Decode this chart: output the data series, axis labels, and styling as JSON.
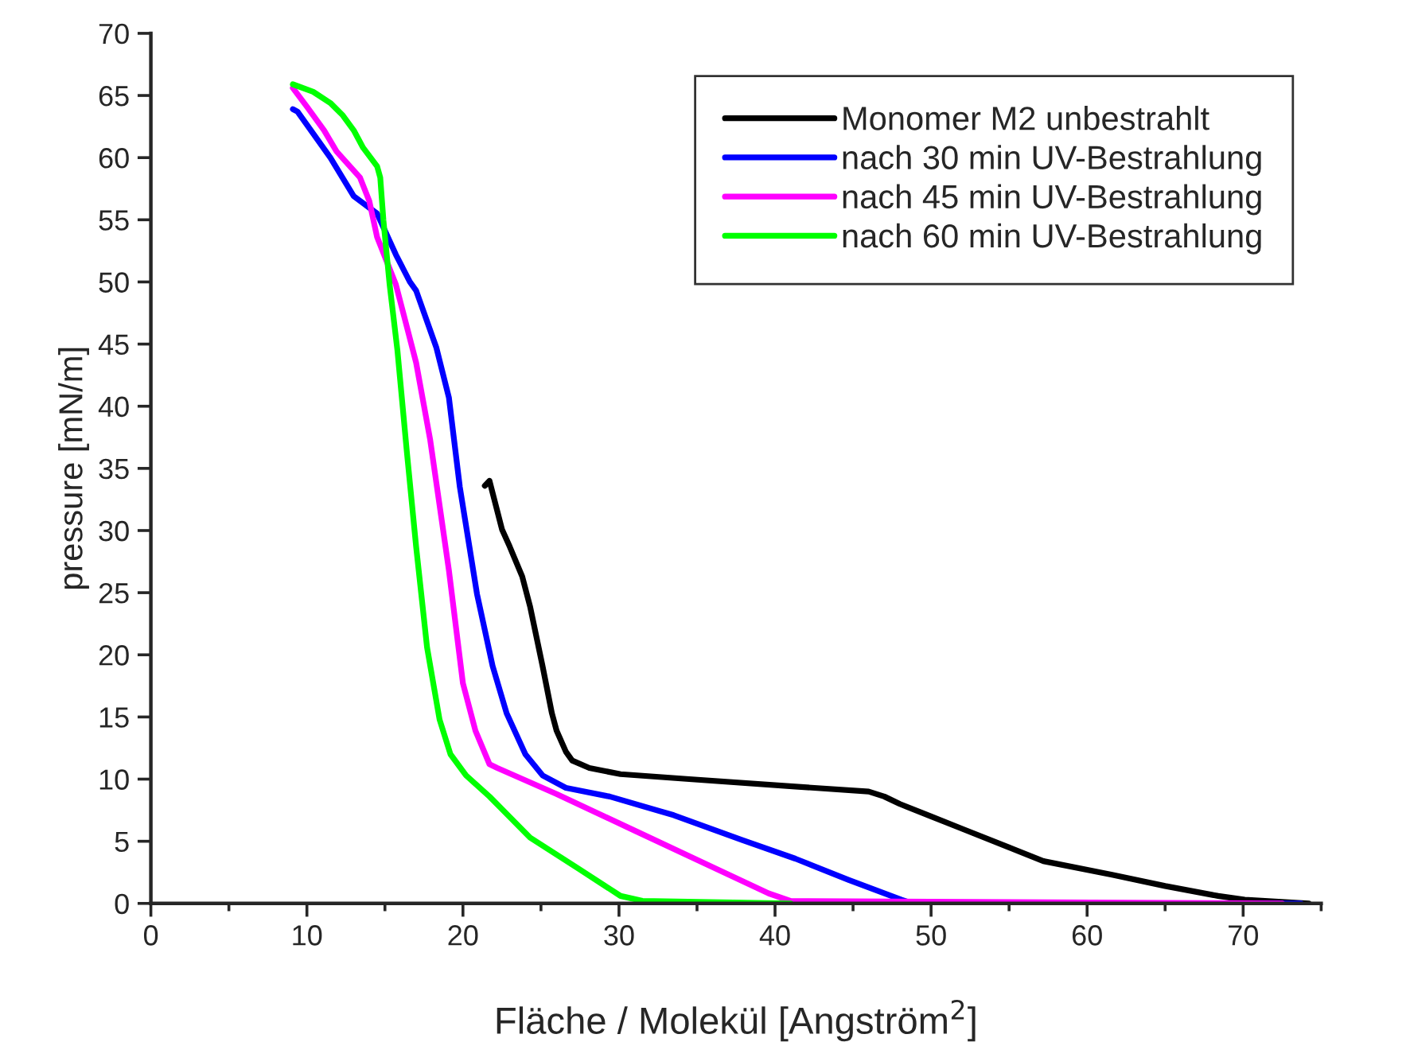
{
  "chart_data": {
    "type": "line",
    "xlabel": "Fläche / Molekül [Angström$^{2}$]",
    "ylabel": "pressure [mN/m]",
    "xlim": [
      0,
      75
    ],
    "ylim": [
      0,
      70
    ],
    "xticks": [
      0,
      10,
      20,
      30,
      40,
      50,
      60,
      70
    ],
    "yticks": [
      0,
      5,
      10,
      15,
      20,
      25,
      30,
      35,
      40,
      45,
      50,
      55,
      60,
      65,
      70
    ],
    "grid": false,
    "legend": "top right",
    "marker": "none",
    "line_style": "solid",
    "series": [
      {
        "name": "Monomer M2 unbestrahlt",
        "color": "#000000",
        "x": [
          21.4,
          21.7,
          22.5,
          23.0,
          23.8,
          24.3,
          25.1,
          25.7,
          26.0,
          26.6,
          27.0,
          28.1,
          30.1,
          34.5,
          41.3,
          46,
          47,
          48,
          50,
          52,
          55,
          57.2,
          61.6,
          65.0,
          68.4,
          70.1,
          74.2
        ],
        "values": [
          33.6,
          34.0,
          30.1,
          28.7,
          26.3,
          23.9,
          19.1,
          15.3,
          13.9,
          12.2,
          11.5,
          10.9,
          10.4,
          10.0,
          9.4,
          9.0,
          8.6,
          8.0,
          7.0,
          6.0,
          4.5,
          3.4,
          2.3,
          1.4,
          0.6,
          0.3,
          0
        ]
      },
      {
        "name": "nach 30 min UV-Bestrahlung",
        "color": "#0000ff",
        "x": [
          9.1,
          9.4,
          11.5,
          13.0,
          14.5,
          15.7,
          16.6,
          17.0,
          18.3,
          19.1,
          19.8,
          20.9,
          21.9,
          22.8,
          24.0,
          25.1,
          26.6,
          29.4,
          33.5,
          37.9,
          41.3,
          44.7,
          48.1,
          48.8,
          73.7
        ],
        "values": [
          63.9,
          63.7,
          60.0,
          56.9,
          55.5,
          52.2,
          50.0,
          49.3,
          44.7,
          40.7,
          33.5,
          24.9,
          19.1,
          15.3,
          12.0,
          10.3,
          9.3,
          8.6,
          7.1,
          5.1,
          3.6,
          1.9,
          0.3,
          0,
          0
        ]
      },
      {
        "name": "nach 45 min UV-Bestrahlung",
        "color": "#ff00ff",
        "x": [
          9.1,
          10.0,
          11.1,
          11.9,
          13.4,
          14.0,
          14.5,
          15.7,
          17.0,
          17.9,
          19.1,
          20.0,
          20.8,
          21.7,
          22.2,
          26.0,
          31.1,
          36.2,
          39.6,
          41.0,
          72.5
        ],
        "values": [
          65.6,
          64.1,
          62.2,
          60.5,
          58.4,
          56.5,
          53.6,
          49.8,
          43.5,
          37.3,
          26.8,
          17.7,
          13.9,
          11.2,
          10.9,
          8.8,
          5.8,
          2.8,
          0.8,
          0.2,
          0
        ]
      },
      {
        "name": "nach 60 min UV-Bestrahlung",
        "color": "#00ff00",
        "x": [
          9.1,
          10.4,
          11.5,
          12.3,
          13.0,
          13.6,
          14.5,
          14.7,
          14.9,
          15.3,
          15.8,
          16.4,
          17.0,
          17.7,
          18.5,
          19.2,
          20.2,
          21.7,
          24.3,
          27.4,
          30.1,
          31.5,
          41.0
        ],
        "values": [
          65.9,
          65.3,
          64.4,
          63.4,
          62.2,
          60.8,
          59.3,
          58.4,
          55.0,
          49.8,
          44.5,
          36.4,
          28.7,
          20.6,
          14.8,
          12.0,
          10.3,
          8.6,
          5.3,
          2.8,
          0.6,
          0.2,
          0
        ]
      }
    ]
  }
}
